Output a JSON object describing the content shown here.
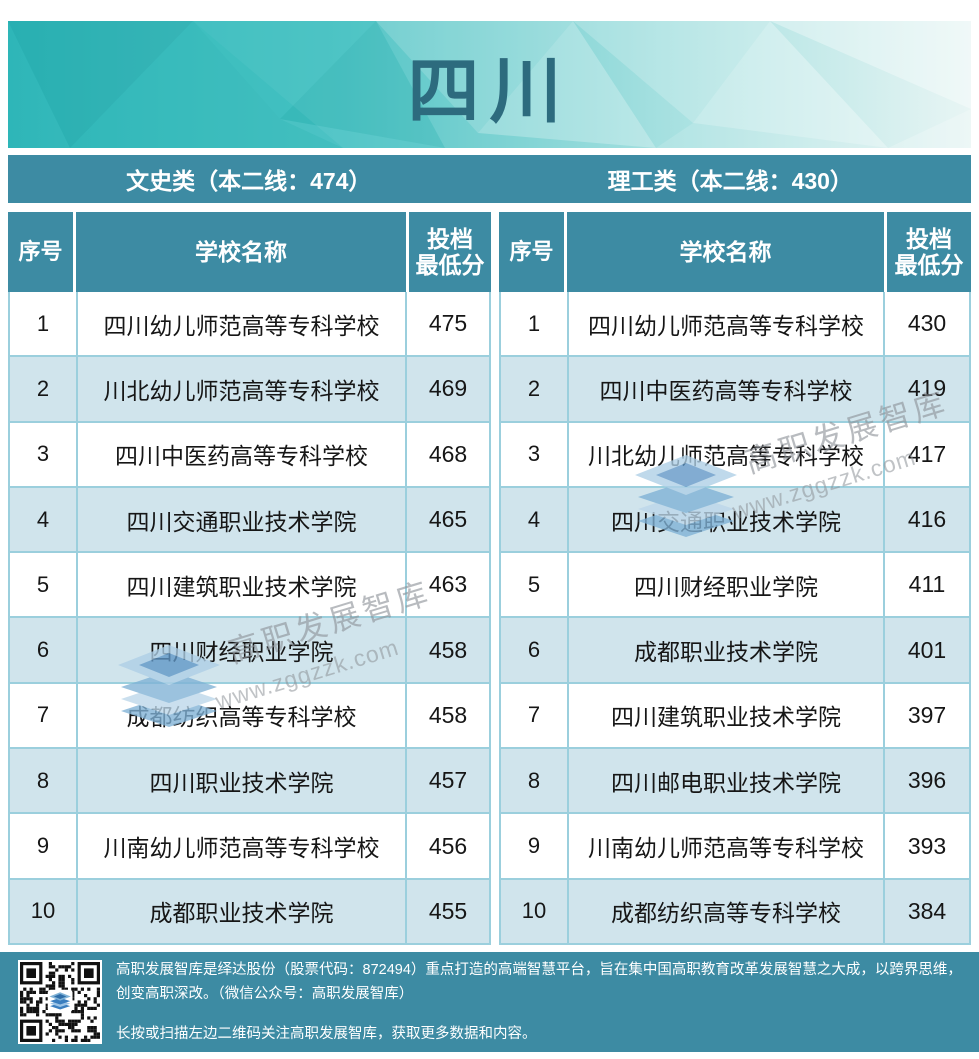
{
  "title": "四川",
  "bands": [
    {
      "label": "文史类（本二线：474）"
    },
    {
      "label": "理工类（本二线：430）"
    }
  ],
  "columns": {
    "no": "序号",
    "school": "学校名称",
    "score_top": "投档",
    "score_bottom": "最低分"
  },
  "tables": [
    {
      "category": "文史类",
      "rows": [
        {
          "no": "1",
          "school": "四川幼儿师范高等专科学校",
          "score": "475"
        },
        {
          "no": "2",
          "school": "川北幼儿师范高等专科学校",
          "score": "469"
        },
        {
          "no": "3",
          "school": "四川中医药高等专科学校",
          "score": "468"
        },
        {
          "no": "4",
          "school": "四川交通职业技术学院",
          "score": "465"
        },
        {
          "no": "5",
          "school": "四川建筑职业技术学院",
          "score": "463"
        },
        {
          "no": "6",
          "school": "四川财经职业学院",
          "score": "458"
        },
        {
          "no": "7",
          "school": "成都纺织高等专科学校",
          "score": "458"
        },
        {
          "no": "8",
          "school": "四川职业技术学院",
          "score": "457"
        },
        {
          "no": "9",
          "school": "川南幼儿师范高等专科学校",
          "score": "456"
        },
        {
          "no": "10",
          "school": "成都职业技术学院",
          "score": "455"
        }
      ]
    },
    {
      "category": "理工类",
      "rows": [
        {
          "no": "1",
          "school": "四川幼儿师范高等专科学校",
          "score": "430"
        },
        {
          "no": "2",
          "school": "四川中医药高等专科学校",
          "score": "419"
        },
        {
          "no": "3",
          "school": "川北幼儿师范高等专科学校",
          "score": "417"
        },
        {
          "no": "4",
          "school": "四川交通职业技术学院",
          "score": "416"
        },
        {
          "no": "5",
          "school": "四川财经职业学院",
          "score": "411"
        },
        {
          "no": "6",
          "school": "成都职业技术学院",
          "score": "401"
        },
        {
          "no": "7",
          "school": "四川建筑职业技术学院",
          "score": "397"
        },
        {
          "no": "8",
          "school": "四川邮电职业技术学院",
          "score": "396"
        },
        {
          "no": "9",
          "school": "川南幼儿师范高等专科学校",
          "score": "393"
        },
        {
          "no": "10",
          "school": "成都纺织高等专科学校",
          "score": "384"
        }
      ]
    }
  ],
  "watermark": {
    "brand": "高职发展智库",
    "url": "www.zggzzk.com"
  },
  "footer": {
    "intro": "高职发展智库是绎达股份（股票代码：872494）重点打造的高端智慧平台，旨在集中国高职教育改革发展智慧之大成，以跨界思维，创变高职深改。（微信公众号：高职发展智库）",
    "scan_tip": "长按或扫描左边二维码关注高职发展智库，获取更多数据和内容。"
  },
  "colors": {
    "teal_main": "#3d8ba3",
    "banner_start": "#2eb6b8",
    "banner_end": "#e8f5f4",
    "title_text": "#2d6b7e",
    "row_alt": "#d0e4ec",
    "cell_border": "#9bcfdd"
  }
}
